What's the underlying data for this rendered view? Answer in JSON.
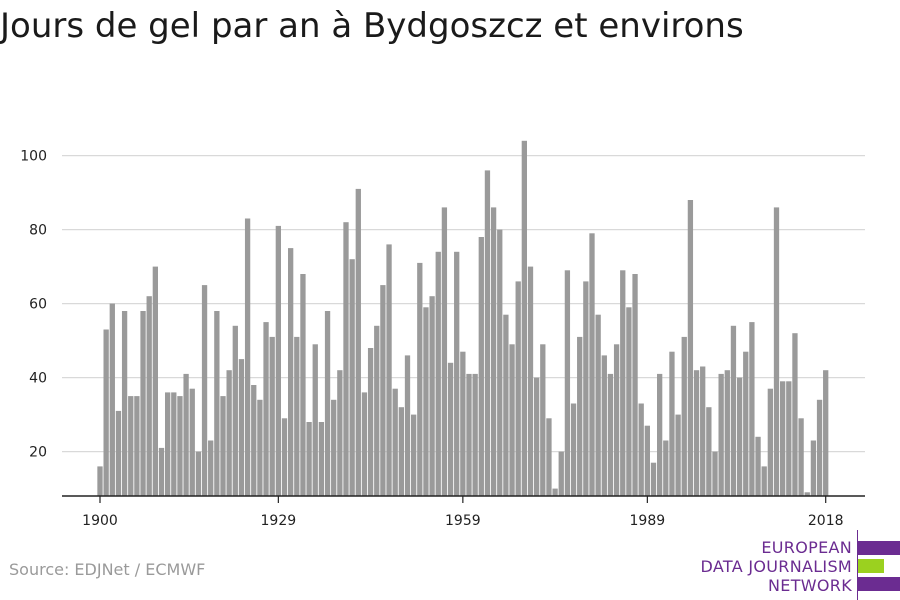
{
  "title": "Jours de gel par an à Bydgoszcz et environs",
  "source": "Source: EDJNet / ECMWF",
  "logo": {
    "line1": "EUROPEAN",
    "line2": "DATA JOURNALISM",
    "line3": "NETWORK",
    "colors": [
      "#6b2c91",
      "#9bd11f",
      "#6b2c91"
    ]
  },
  "colors": {
    "bar": "#9a9a9a",
    "grid": "#d9d9d9",
    "axis": "#222222",
    "tick_text": "#222222"
  },
  "chart_data": {
    "type": "bar",
    "title": "Jours de gel par an à Bydgoszcz et environs",
    "xlabel": "",
    "ylabel": "",
    "x_ticks": [
      "1900",
      "1929",
      "1959",
      "1989",
      "2018"
    ],
    "y_ticks": [
      20,
      40,
      60,
      80,
      100
    ],
    "xlim": [
      1900,
      2018
    ],
    "ylim": [
      8,
      104
    ],
    "grid": true,
    "categories": [
      1900,
      1901,
      1902,
      1903,
      1904,
      1905,
      1906,
      1907,
      1908,
      1909,
      1910,
      1911,
      1912,
      1913,
      1914,
      1915,
      1916,
      1917,
      1918,
      1919,
      1920,
      1921,
      1922,
      1923,
      1924,
      1925,
      1926,
      1927,
      1928,
      1929,
      1930,
      1931,
      1932,
      1933,
      1934,
      1935,
      1936,
      1937,
      1938,
      1939,
      1940,
      1941,
      1942,
      1943,
      1944,
      1945,
      1946,
      1947,
      1948,
      1949,
      1950,
      1951,
      1952,
      1953,
      1954,
      1955,
      1956,
      1957,
      1958,
      1959,
      1960,
      1961,
      1962,
      1963,
      1964,
      1965,
      1966,
      1967,
      1968,
      1969,
      1970,
      1971,
      1972,
      1973,
      1974,
      1975,
      1976,
      1977,
      1978,
      1979,
      1980,
      1981,
      1982,
      1983,
      1984,
      1985,
      1986,
      1987,
      1988,
      1989,
      1990,
      1991,
      1992,
      1993,
      1994,
      1995,
      1996,
      1997,
      1998,
      1999,
      2000,
      2001,
      2002,
      2003,
      2004,
      2005,
      2006,
      2007,
      2008,
      2009,
      2010,
      2011,
      2012,
      2013,
      2014,
      2015,
      2016,
      2017,
      2018
    ],
    "values": [
      16,
      53,
      60,
      31,
      58,
      35,
      35,
      58,
      62,
      70,
      21,
      36,
      36,
      35,
      41,
      37,
      20,
      65,
      23,
      58,
      35,
      42,
      54,
      45,
      83,
      38,
      34,
      55,
      51,
      81,
      29,
      75,
      51,
      68,
      28,
      49,
      28,
      58,
      34,
      42,
      82,
      72,
      91,
      36,
      48,
      54,
      65,
      76,
      37,
      32,
      46,
      30,
      71,
      59,
      62,
      74,
      86,
      44,
      74,
      47,
      41,
      41,
      78,
      96,
      86,
      80,
      57,
      49,
      66,
      104,
      70,
      40,
      49,
      29,
      10,
      20,
      69,
      33,
      51,
      66,
      79,
      57,
      46,
      41,
      49,
      69,
      59,
      68,
      33,
      27,
      17,
      41,
      23,
      47,
      30,
      51,
      88,
      42,
      43,
      32,
      20,
      41,
      42,
      54,
      40,
      47,
      55,
      24,
      16,
      37,
      86,
      39,
      39,
      52,
      29,
      9,
      23,
      34,
      42
    ]
  }
}
